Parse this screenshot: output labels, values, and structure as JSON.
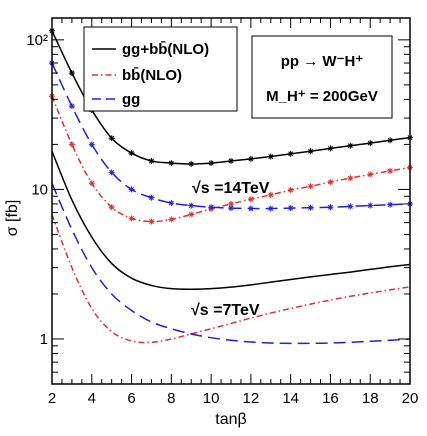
{
  "chart_data": {
    "type": "line",
    "xlabel": "tanβ",
    "ylabel": "σ [fb]",
    "xlim": [
      2,
      20
    ],
    "ylim": [
      0.5,
      140
    ],
    "yscale": "log",
    "xticks": [
      2,
      4,
      6,
      8,
      10,
      12,
      14,
      16,
      18,
      20
    ],
    "xtick_labels": [
      "2",
      "4",
      "6",
      "8",
      "10",
      "12",
      "14",
      "16",
      "18",
      "20"
    ],
    "yticks": [
      1,
      10,
      100
    ],
    "ytick_labels": [
      "1",
      "10",
      "10²"
    ],
    "grid": false,
    "legend_position": "top-left",
    "legend": [
      {
        "label": "gg+bb̄(NLO)",
        "color": "#000000",
        "style": "solid"
      },
      {
        "label": "bb̄(NLO)",
        "color": "#e03030",
        "style": "dashdot"
      },
      {
        "label": "gg",
        "color": "#2020e0",
        "style": "dashed"
      }
    ],
    "info_box": {
      "line1": "pp → W⁻H⁺",
      "line2": "M_H⁺ = 200GeV"
    },
    "annotations": [
      "√s =14TeV",
      "√s =7TeV"
    ],
    "series": [
      {
        "name": "gg+bb̄(NLO)",
        "energy": "14TeV",
        "color": "#000000",
        "style": "solid",
        "markers": true,
        "x": [
          2,
          3,
          4,
          5,
          6,
          7,
          8,
          9,
          10,
          11,
          12,
          13,
          14,
          15,
          16,
          17,
          18,
          19,
          20
        ],
        "y": [
          115,
          60,
          34,
          22,
          17.5,
          15.5,
          15,
          14.8,
          15,
          15.5,
          16,
          16.6,
          17.3,
          18,
          18.8,
          19.6,
          20.4,
          21.3,
          22.2
        ]
      },
      {
        "name": "bb̄(NLO)",
        "energy": "14TeV",
        "color": "#e03030",
        "style": "dashdot",
        "markers": true,
        "x": [
          2,
          3,
          4,
          5,
          6,
          7,
          8,
          9,
          10,
          11,
          12,
          13,
          14,
          15,
          16,
          17,
          18,
          19,
          20
        ],
        "y": [
          42,
          20,
          11,
          7.6,
          6.4,
          6.1,
          6.3,
          6.8,
          7.4,
          8.0,
          8.6,
          9.2,
          9.9,
          10.5,
          11.2,
          11.9,
          12.6,
          13.3,
          14.0
        ]
      },
      {
        "name": "gg",
        "energy": "14TeV",
        "color": "#2020e0",
        "style": "dashed",
        "markers": true,
        "x": [
          2,
          3,
          4,
          5,
          6,
          7,
          8,
          9,
          10,
          11,
          12,
          13,
          14,
          15,
          16,
          17,
          18,
          19,
          20
        ],
        "y": [
          70,
          36,
          20,
          13,
          10,
          8.8,
          8.1,
          7.8,
          7.6,
          7.5,
          7.45,
          7.45,
          7.5,
          7.55,
          7.6,
          7.7,
          7.8,
          7.9,
          8.0
        ]
      },
      {
        "name": "gg+bb̄(NLO)",
        "energy": "7TeV",
        "color": "#000000",
        "style": "solid",
        "markers": false,
        "x": [
          2,
          3,
          4,
          5,
          6,
          7,
          8,
          9,
          10,
          11,
          12,
          13,
          14,
          15,
          16,
          17,
          18,
          19,
          20
        ],
        "y": [
          18,
          8.5,
          4.8,
          3.2,
          2.55,
          2.28,
          2.17,
          2.15,
          2.17,
          2.22,
          2.3,
          2.4,
          2.5,
          2.6,
          2.7,
          2.8,
          2.92,
          3.04,
          3.15
        ]
      },
      {
        "name": "bb̄(NLO)",
        "energy": "7TeV",
        "color": "#e03030",
        "style": "dashdot",
        "markers": false,
        "x": [
          2,
          3,
          4,
          5,
          6,
          7,
          8,
          9,
          10,
          11,
          12,
          13,
          14,
          15,
          16,
          17,
          18,
          19,
          20
        ],
        "y": [
          6.8,
          3.0,
          1.6,
          1.12,
          0.97,
          0.95,
          1.0,
          1.08,
          1.17,
          1.27,
          1.38,
          1.49,
          1.6,
          1.71,
          1.82,
          1.93,
          2.03,
          2.13,
          2.23
        ]
      },
      {
        "name": "gg",
        "energy": "7TeV",
        "color": "#2020e0",
        "style": "dashed",
        "markers": false,
        "x": [
          2,
          3,
          4,
          5,
          6,
          7,
          8,
          9,
          10,
          11,
          12,
          13,
          14,
          15,
          16,
          17,
          18,
          19,
          20
        ],
        "y": [
          11,
          5.4,
          3.0,
          2.0,
          1.55,
          1.3,
          1.17,
          1.08,
          1.02,
          0.98,
          0.955,
          0.94,
          0.935,
          0.935,
          0.94,
          0.95,
          0.965,
          0.98,
          1.0
        ]
      }
    ]
  }
}
